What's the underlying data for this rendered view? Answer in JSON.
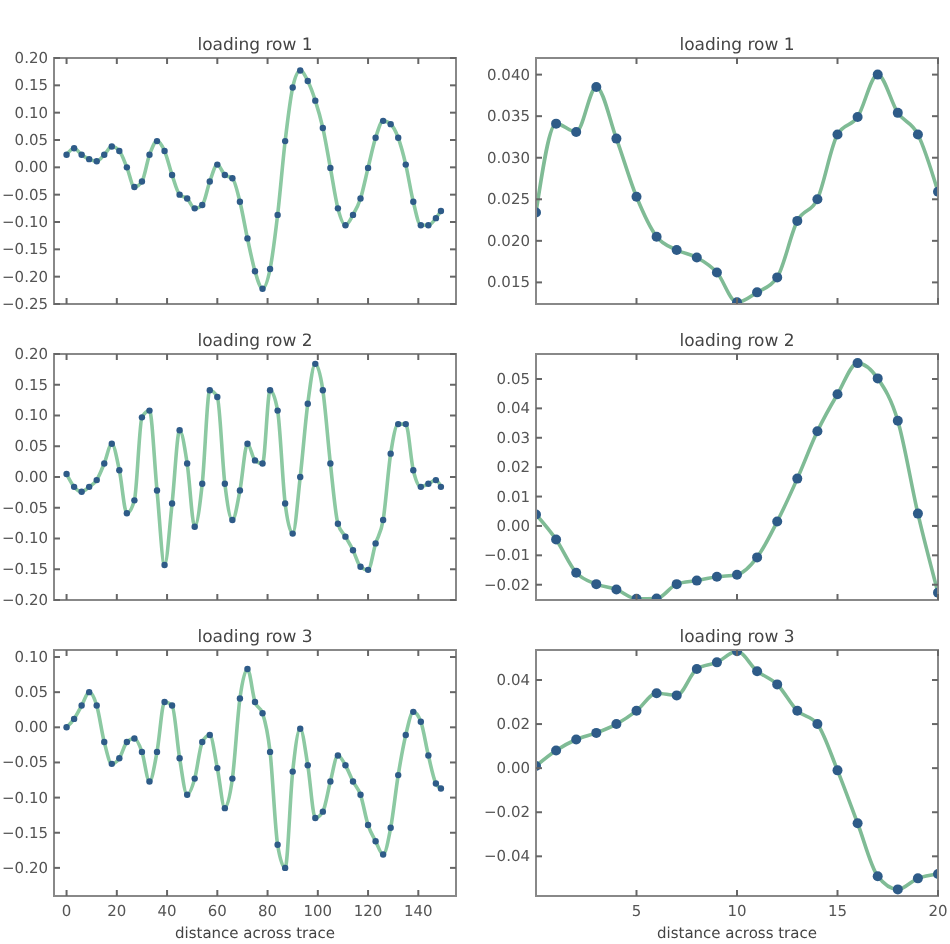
{
  "chart_data": [
    {
      "type": "scatter",
      "title": "loading row 1",
      "tick_labels": "y",
      "xlim": [
        -5,
        155
      ],
      "xticks": [
        0,
        20,
        40,
        60,
        80,
        100,
        120,
        140
      ],
      "ylim": [
        -0.25,
        0.2
      ],
      "yticks": [
        {
          "value": -0.25,
          "label": "−0.25"
        },
        {
          "value": -0.2,
          "label": "−0.20"
        },
        {
          "value": -0.15,
          "label": "−0.15"
        },
        {
          "value": -0.1,
          "label": "−0.10"
        },
        {
          "value": -0.05,
          "label": "−0.05"
        },
        {
          "value": 0,
          "label": "0.00"
        },
        {
          "value": 0.05,
          "label": "0.05"
        },
        {
          "value": 0.1,
          "label": "0.10"
        },
        {
          "value": 0.15,
          "label": "0.15"
        },
        {
          "value": 0.2,
          "label": "0.20"
        }
      ],
      "x": [
        0,
        3,
        6,
        9,
        12,
        15,
        18,
        21,
        24,
        27,
        30,
        33,
        36,
        39,
        42,
        45,
        48,
        51,
        54,
        57,
        60,
        63,
        66,
        69,
        72,
        75,
        78,
        81,
        84,
        87,
        90,
        93,
        96,
        99,
        102,
        105,
        108,
        111,
        114,
        117,
        120,
        123,
        126,
        129,
        132,
        135,
        138,
        141,
        144,
        147,
        149
      ],
      "series": [
        {
          "type": "line",
          "color": "#8cc9a2",
          "values": [
            0.023,
            0.035,
            0.023,
            0.015,
            0.011,
            0.023,
            0.038,
            0.03,
            0,
            -0.036,
            -0.026,
            0.023,
            0.048,
            0.03,
            -0.014,
            -0.05,
            -0.057,
            -0.075,
            -0.069,
            -0.026,
            0.005,
            -0.014,
            -0.02,
            -0.063,
            -0.13,
            -0.19,
            -0.222,
            -0.186,
            -0.087,
            0.048,
            0.146,
            0.177,
            0.158,
            0.122,
            0.072,
            -0.001,
            -0.075,
            -0.106,
            -0.087,
            -0.057,
            -0.001,
            0.054,
            0.085,
            0.079,
            0.054,
            0.005,
            -0.063,
            -0.106,
            -0.106,
            -0.093,
            -0.08
          ]
        },
        {
          "color": "#2e5b88",
          "values": [
            0.023,
            0.035,
            0.023,
            0.015,
            0.011,
            0.023,
            0.038,
            0.03,
            0,
            -0.036,
            -0.026,
            0.023,
            0.048,
            0.03,
            -0.014,
            -0.05,
            -0.057,
            -0.075,
            -0.069,
            -0.026,
            0.005,
            -0.014,
            -0.02,
            -0.063,
            -0.13,
            -0.19,
            -0.222,
            -0.186,
            -0.087,
            0.048,
            0.146,
            0.177,
            0.158,
            0.122,
            0.072,
            -0.001,
            -0.075,
            -0.106,
            -0.087,
            -0.057,
            -0.001,
            0.054,
            0.085,
            0.079,
            0.054,
            0.005,
            -0.063,
            -0.106,
            -0.106,
            -0.093,
            -0.08
          ]
        }
      ]
    },
    {
      "type": "scatter",
      "title": "loading row 1",
      "tick_labels": "y",
      "xlim": [
        0,
        20
      ],
      "xticks": [
        5,
        10,
        15,
        20
      ],
      "ylim": [
        0.0124,
        0.042
      ],
      "yticks": [
        {
          "value": 0.015,
          "label": "0.015"
        },
        {
          "value": 0.02,
          "label": "0.020"
        },
        {
          "value": 0.025,
          "label": "0.025"
        },
        {
          "value": 0.03,
          "label": "0.030"
        },
        {
          "value": 0.035,
          "label": "0.035"
        },
        {
          "value": 0.04,
          "label": "0.040"
        }
      ],
      "x": [
        0,
        1,
        2,
        3,
        4,
        5,
        6,
        7,
        8,
        9,
        10,
        11,
        12,
        13,
        14,
        15,
        16,
        17,
        18,
        19,
        20
      ],
      "series": [
        {
          "type": "line",
          "color": "#7fbb95",
          "values": [
            0.0234,
            0.0341,
            0.0331,
            0.0385,
            0.0323,
            0.0253,
            0.0205,
            0.0189,
            0.018,
            0.0162,
            0.0126,
            0.0138,
            0.0156,
            0.0224,
            0.025,
            0.0328,
            0.0349,
            0.04,
            0.0354,
            0.0328,
            0.0259
          ]
        },
        {
          "color": "#2e5b88",
          "values": [
            0.0234,
            0.0341,
            0.0331,
            0.0385,
            0.0323,
            0.0253,
            0.0205,
            0.0189,
            0.018,
            0.0162,
            0.0126,
            0.0138,
            0.0156,
            0.0224,
            0.025,
            0.0328,
            0.0349,
            0.04,
            0.0354,
            0.0328,
            0.0259
          ]
        }
      ]
    },
    {
      "type": "scatter",
      "title": "loading row 2",
      "tick_labels": "y",
      "xlim": [
        -5,
        155
      ],
      "xticks": [
        0,
        20,
        40,
        60,
        80,
        100,
        120,
        140
      ],
      "ylim": [
        -0.2,
        0.2
      ],
      "yticks": [
        {
          "value": -0.2,
          "label": "−0.20"
        },
        {
          "value": -0.15,
          "label": "−0.15"
        },
        {
          "value": -0.1,
          "label": "−0.10"
        },
        {
          "value": -0.05,
          "label": "−0.05"
        },
        {
          "value": 0,
          "label": "0.00"
        },
        {
          "value": 0.05,
          "label": "0.05"
        },
        {
          "value": 0.1,
          "label": "0.10"
        },
        {
          "value": 0.15,
          "label": "0.15"
        },
        {
          "value": 0.2,
          "label": "0.20"
        }
      ],
      "x": [
        0,
        3,
        6,
        9,
        12,
        15,
        18,
        21,
        24,
        27,
        30,
        33,
        36,
        39,
        42,
        45,
        48,
        51,
        54,
        57,
        60,
        63,
        66,
        69,
        72,
        75,
        78,
        81,
        84,
        87,
        90,
        93,
        96,
        99,
        102,
        105,
        108,
        111,
        114,
        117,
        120,
        123,
        126,
        129,
        132,
        135,
        138,
        141,
        144,
        147,
        149
      ],
      "series": [
        {
          "type": "line",
          "color": "#8cc9a2",
          "values": [
            0.005,
            -0.016,
            -0.024,
            -0.016,
            -0.005,
            0.022,
            0.054,
            0.011,
            -0.059,
            -0.038,
            0.097,
            0.108,
            -0.022,
            -0.143,
            -0.043,
            0.076,
            0.022,
            -0.081,
            -0.011,
            0.141,
            0.13,
            -0.011,
            -0.07,
            -0.022,
            0.054,
            0.027,
            0.022,
            0.141,
            0.108,
            -0.043,
            -0.092,
            0,
            0.119,
            0.184,
            0.141,
            0.022,
            -0.076,
            -0.097,
            -0.119,
            -0.146,
            -0.151,
            -0.108,
            -0.07,
            0.038,
            0.086,
            0.086,
            0.011,
            -0.016,
            -0.011,
            -0.005,
            -0.016
          ]
        },
        {
          "color": "#2e5b88",
          "values": [
            0.005,
            -0.016,
            -0.024,
            -0.016,
            -0.005,
            0.022,
            0.054,
            0.011,
            -0.059,
            -0.038,
            0.097,
            0.108,
            -0.022,
            -0.143,
            -0.043,
            0.076,
            0.022,
            -0.081,
            -0.011,
            0.141,
            0.13,
            -0.011,
            -0.07,
            -0.022,
            0.054,
            0.027,
            0.022,
            0.141,
            0.108,
            -0.043,
            -0.092,
            0,
            0.119,
            0.184,
            0.141,
            0.022,
            -0.076,
            -0.097,
            -0.119,
            -0.146,
            -0.151,
            -0.108,
            -0.07,
            0.038,
            0.086,
            0.086,
            0.011,
            -0.016,
            -0.011,
            -0.005,
            -0.016
          ]
        }
      ]
    },
    {
      "type": "scatter",
      "title": "loading row 2",
      "tick_labels": "y",
      "xlim": [
        0,
        20
      ],
      "xticks": [
        5,
        10,
        15,
        20
      ],
      "ylim": [
        -0.0252,
        0.0585
      ],
      "yticks": [
        {
          "value": -0.02,
          "label": "−0.02"
        },
        {
          "value": -0.01,
          "label": "−0.01"
        },
        {
          "value": 0,
          "label": "0.00"
        },
        {
          "value": 0.01,
          "label": "0.01"
        },
        {
          "value": 0.02,
          "label": "0.02"
        },
        {
          "value": 0.03,
          "label": "0.03"
        },
        {
          "value": 0.04,
          "label": "0.04"
        },
        {
          "value": 0.05,
          "label": "0.05"
        }
      ],
      "x": [
        0,
        1,
        2,
        3,
        4,
        5,
        6,
        7,
        8,
        9,
        10,
        11,
        12,
        13,
        14,
        15,
        16,
        17,
        18,
        19,
        20
      ],
      "series": [
        {
          "type": "line",
          "color": "#7fbb95",
          "values": [
            0.0039,
            -0.0046,
            -0.0159,
            -0.0198,
            -0.0216,
            -0.0248,
            -0.0247,
            -0.0198,
            -0.0186,
            -0.0173,
            -0.0166,
            -0.0107,
            0.0015,
            0.0161,
            0.0322,
            0.0448,
            0.0554,
            0.0502,
            0.0358,
            0.0042,
            -0.0227
          ]
        },
        {
          "color": "#2e5b88",
          "values": [
            0.0039,
            -0.0046,
            -0.0159,
            -0.0198,
            -0.0216,
            -0.0248,
            -0.0247,
            -0.0198,
            -0.0186,
            -0.0173,
            -0.0166,
            -0.0107,
            0.0015,
            0.0161,
            0.0322,
            0.0448,
            0.0554,
            0.0502,
            0.0358,
            0.0042,
            -0.0227
          ]
        }
      ]
    },
    {
      "type": "scatter",
      "title": "loading row 3",
      "xlabel": "distance across trace",
      "xlim": [
        -5,
        155
      ],
      "xticks": [
        0,
        20,
        40,
        60,
        80,
        100,
        120,
        140
      ],
      "ylim": [
        -0.24,
        0.11
      ],
      "yticks": [
        {
          "value": -0.2,
          "label": "−0.20"
        },
        {
          "value": -0.15,
          "label": "−0.15"
        },
        {
          "value": -0.1,
          "label": "−0.10"
        },
        {
          "value": -0.05,
          "label": "−0.05"
        },
        {
          "value": 0,
          "label": "0.00"
        },
        {
          "value": 0.05,
          "label": "0.05"
        },
        {
          "value": 0.1,
          "label": "0.10"
        }
      ],
      "x": [
        0,
        3,
        6,
        9,
        12,
        15,
        18,
        21,
        24,
        27,
        30,
        33,
        36,
        39,
        42,
        45,
        48,
        51,
        54,
        57,
        60,
        63,
        66,
        69,
        72,
        75,
        78,
        81,
        84,
        87,
        90,
        93,
        96,
        99,
        102,
        105,
        108,
        111,
        114,
        117,
        120,
        123,
        126,
        129,
        132,
        135,
        138,
        141,
        144,
        147,
        149
      ],
      "series": [
        {
          "type": "line",
          "color": "#8cc9a2",
          "values": [
            0,
            0.012,
            0.031,
            0.05,
            0.031,
            -0.021,
            -0.052,
            -0.044,
            -0.021,
            -0.016,
            -0.035,
            -0.077,
            -0.035,
            0.036,
            0.031,
            -0.044,
            -0.096,
            -0.073,
            -0.021,
            -0.011,
            -0.058,
            -0.115,
            -0.073,
            0.041,
            0.083,
            0.036,
            0.02,
            -0.035,
            -0.167,
            -0.2,
            -0.063,
            -0.002,
            -0.054,
            -0.129,
            -0.12,
            -0.077,
            -0.04,
            -0.054,
            -0.077,
            -0.096,
            -0.139,
            -0.162,
            -0.181,
            -0.143,
            -0.068,
            -0.011,
            0.022,
            0.008,
            -0.04,
            -0.08,
            -0.087
          ]
        },
        {
          "color": "#2e5b88",
          "values": [
            0,
            0.012,
            0.031,
            0.05,
            0.031,
            -0.021,
            -0.052,
            -0.044,
            -0.021,
            -0.016,
            -0.035,
            -0.077,
            -0.035,
            0.036,
            0.031,
            -0.044,
            -0.096,
            -0.073,
            -0.021,
            -0.011,
            -0.058,
            -0.115,
            -0.073,
            0.041,
            0.083,
            0.036,
            0.02,
            -0.035,
            -0.167,
            -0.2,
            -0.063,
            -0.002,
            -0.054,
            -0.129,
            -0.12,
            -0.077,
            -0.04,
            -0.054,
            -0.077,
            -0.096,
            -0.139,
            -0.162,
            -0.181,
            -0.143,
            -0.068,
            -0.011,
            0.022,
            0.008,
            -0.04,
            -0.08,
            -0.087
          ]
        }
      ]
    },
    {
      "type": "scatter",
      "title": "loading row 3",
      "xlabel": "distance across trace",
      "xlim": [
        0,
        20
      ],
      "xticks": [
        5,
        10,
        15,
        20
      ],
      "ylim": [
        -0.058,
        0.0536
      ],
      "yticks": [
        {
          "value": -0.04,
          "label": "−0.04"
        },
        {
          "value": -0.02,
          "label": "−0.02"
        },
        {
          "value": 0,
          "label": "0.00"
        },
        {
          "value": 0.02,
          "label": "0.02"
        },
        {
          "value": 0.04,
          "label": "0.04"
        }
      ],
      "x": [
        0,
        1,
        2,
        3,
        4,
        5,
        6,
        7,
        8,
        9,
        10,
        11,
        12,
        13,
        14,
        15,
        16,
        17,
        18,
        19,
        20
      ],
      "series": [
        {
          "type": "line",
          "color": "#7fbb95",
          "values": [
            0.001,
            0.008,
            0.013,
            0.016,
            0.02,
            0.026,
            0.034,
            0.033,
            0.045,
            0.048,
            0.053,
            0.044,
            0.038,
            0.026,
            0.02,
            -0.001,
            -0.025,
            -0.049,
            -0.055,
            -0.05,
            -0.048
          ]
        },
        {
          "color": "#2e5b88",
          "values": [
            0.001,
            0.008,
            0.013,
            0.016,
            0.02,
            0.026,
            0.034,
            0.033,
            0.045,
            0.048,
            0.053,
            0.044,
            0.038,
            0.026,
            0.02,
            -0.001,
            -0.025,
            -0.049,
            -0.055,
            -0.05,
            -0.048
          ]
        }
      ]
    }
  ]
}
